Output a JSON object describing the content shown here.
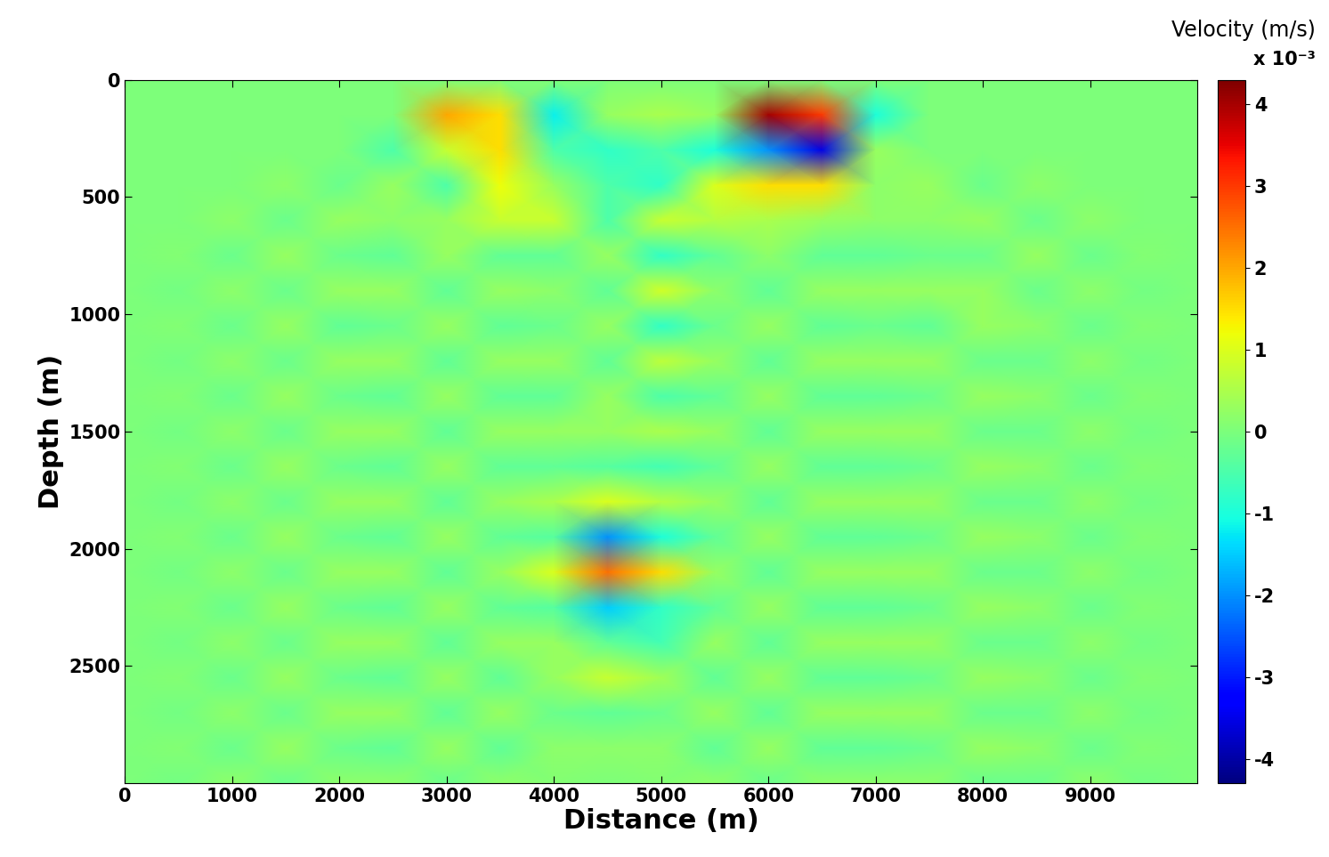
{
  "chart_data": {
    "type": "heatmap",
    "x_label": "Distance (m)",
    "y_label": "Depth (m)",
    "colorbar_label": "Velocity (m/s)",
    "colorbar_multiplier": "x 10⁻³",
    "color": "jet",
    "xlim": [
      0,
      10000
    ],
    "ylim": [
      3000,
      0
    ],
    "xticks": [
      0,
      1000,
      2000,
      3000,
      4000,
      5000,
      6000,
      7000,
      8000,
      9000
    ],
    "yticks": [
      0,
      500,
      1000,
      1500,
      2000,
      2500
    ],
    "colorbar_range": [
      -4.3,
      4.3
    ],
    "colorbar_ticks": [
      -4,
      -3,
      -2,
      -1,
      0,
      1,
      2,
      3,
      4
    ],
    "x": [
      0,
      500,
      1000,
      1500,
      2000,
      2500,
      3000,
      3500,
      4000,
      4500,
      5000,
      5500,
      6000,
      6500,
      7000,
      7500,
      8000,
      8500,
      9000,
      9500,
      10000
    ],
    "y": [
      0,
      150,
      300,
      450,
      600,
      750,
      900,
      1050,
      1200,
      1350,
      1500,
      1650,
      1800,
      1950,
      2100,
      2250,
      2400,
      2550,
      2700,
      2850,
      3000
    ],
    "cells": [
      [
        0,
        0,
        0,
        0,
        0,
        0,
        0,
        0,
        0,
        0,
        0,
        0,
        0,
        0,
        0,
        0,
        0,
        0,
        0,
        0,
        0
      ],
      [
        0,
        0,
        0,
        0,
        0,
        0,
        2.0,
        1.5,
        -1.2,
        0.3,
        0.5,
        0.3,
        4.0,
        3.0,
        -1.0,
        0,
        0,
        0,
        0,
        0,
        0
      ],
      [
        0,
        0,
        0,
        0,
        0,
        -0.5,
        0.8,
        1.5,
        -0.5,
        -0.8,
        -0.5,
        -1.0,
        -2.0,
        -3.5,
        0.3,
        0,
        0,
        0,
        0,
        0,
        0
      ],
      [
        0,
        0,
        0,
        0.2,
        -0.2,
        0.3,
        -0.5,
        1.2,
        0.3,
        -0.5,
        -0.8,
        1.0,
        1.5,
        1.5,
        0.2,
        0.3,
        -0.2,
        0.2,
        0,
        0,
        0
      ],
      [
        0,
        0,
        0.2,
        -0.2,
        0.3,
        0.2,
        0.3,
        0.8,
        0.8,
        -0.5,
        0.8,
        0.6,
        0.5,
        0.3,
        0.2,
        0.2,
        0.3,
        -0.2,
        0.2,
        0,
        0
      ],
      [
        0,
        0.1,
        -0.2,
        0.3,
        -0.2,
        -0.3,
        0.3,
        -0.3,
        -0.3,
        0.3,
        -0.8,
        -0.3,
        0.2,
        -0.3,
        -0.3,
        -0.2,
        -0.2,
        0.3,
        -0.2,
        0.1,
        0
      ],
      [
        0,
        -0.1,
        0.2,
        -0.2,
        0.3,
        0.3,
        -0.3,
        0.3,
        0.2,
        -0.3,
        0.9,
        0.2,
        -0.3,
        0.3,
        0.3,
        0.3,
        0.3,
        -0.2,
        0.2,
        -0.1,
        0
      ],
      [
        0,
        0.1,
        -0.2,
        0.3,
        -0.3,
        -0.2,
        0.3,
        -0.3,
        -0.2,
        0.3,
        -0.8,
        -0.2,
        0.3,
        -0.3,
        -0.2,
        -0.3,
        0.3,
        0.2,
        -0.2,
        0.1,
        0
      ],
      [
        0,
        -0.1,
        0.2,
        -0.2,
        0.3,
        0.3,
        -0.3,
        0.3,
        0.3,
        -0.3,
        0.7,
        0.3,
        -0.3,
        0.3,
        0.3,
        0.3,
        -0.2,
        -0.2,
        0.2,
        -0.1,
        0
      ],
      [
        0,
        0.1,
        -0.2,
        0.3,
        -0.2,
        -0.3,
        0.3,
        -0.3,
        -0.3,
        0.3,
        -0.5,
        -0.3,
        0.3,
        -0.3,
        -0.3,
        -0.2,
        0.3,
        0.2,
        -0.2,
        0.1,
        0
      ],
      [
        0,
        -0.1,
        0.2,
        -0.2,
        0.3,
        0.3,
        -0.3,
        0.3,
        0.3,
        0.3,
        0.5,
        0.3,
        -0.3,
        0.3,
        0.3,
        0.3,
        -0.2,
        -0.2,
        0.2,
        -0.1,
        0
      ],
      [
        0,
        0.1,
        -0.2,
        0.3,
        -0.2,
        -0.3,
        0.3,
        -0.3,
        -0.3,
        -0.4,
        -0.6,
        -0.3,
        0.3,
        -0.3,
        -0.3,
        -0.2,
        0.3,
        0.2,
        -0.2,
        0.1,
        0
      ],
      [
        0,
        -0.1,
        0.2,
        -0.2,
        0.3,
        0.3,
        -0.3,
        0.3,
        0.5,
        1.0,
        0.6,
        0.3,
        -0.3,
        0.3,
        0.3,
        0.3,
        -0.2,
        -0.2,
        0.2,
        -0.1,
        0
      ],
      [
        0,
        0.1,
        -0.2,
        0.3,
        -0.2,
        -0.3,
        0.3,
        -0.3,
        -0.4,
        -2.0,
        -1.0,
        -0.3,
        0.3,
        -0.3,
        -0.3,
        -0.2,
        0.3,
        0.2,
        -0.2,
        0.1,
        0
      ],
      [
        0,
        -0.1,
        0.2,
        -0.2,
        0.3,
        0.3,
        -0.3,
        0.3,
        1.0,
        2.5,
        1.5,
        0.3,
        -0.3,
        0.3,
        0.3,
        0.3,
        -0.2,
        -0.2,
        0.2,
        -0.1,
        0
      ],
      [
        0,
        0.1,
        -0.2,
        0.3,
        -0.2,
        -0.3,
        0.3,
        -0.3,
        -0.4,
        -1.5,
        -0.8,
        -0.3,
        0.3,
        -0.3,
        -0.3,
        -0.2,
        0.3,
        0.2,
        -0.2,
        0.1,
        0
      ],
      [
        0,
        -0.1,
        0.2,
        -0.2,
        0.3,
        0.3,
        -0.3,
        0.3,
        0.3,
        -0.3,
        -0.6,
        0.3,
        -0.3,
        0.3,
        0.3,
        0.3,
        -0.2,
        -0.2,
        0.2,
        -0.1,
        0
      ],
      [
        0,
        0.1,
        -0.2,
        0.3,
        -0.2,
        -0.3,
        0.3,
        -0.3,
        0.3,
        0.8,
        0.4,
        -0.3,
        0.3,
        -0.3,
        -0.3,
        -0.2,
        0.3,
        0.2,
        -0.2,
        0.1,
        0
      ],
      [
        0,
        -0.1,
        0.2,
        -0.2,
        0.3,
        0.3,
        -0.3,
        0.3,
        -0.2,
        -0.3,
        -0.2,
        0.3,
        -0.3,
        0.3,
        0.3,
        0.3,
        -0.2,
        -0.2,
        0.2,
        -0.1,
        0
      ],
      [
        0,
        0.1,
        -0.2,
        0.3,
        -0.2,
        -0.3,
        0.3,
        -0.3,
        0.2,
        0.2,
        0.2,
        -0.3,
        0.3,
        -0.3,
        -0.3,
        -0.2,
        0.3,
        0.2,
        -0.2,
        0.1,
        0
      ],
      [
        0,
        -0.1,
        0.2,
        -0.2,
        0.2,
        0.2,
        -0.2,
        0.2,
        0.1,
        0,
        0.1,
        0.2,
        -0.2,
        0.2,
        0.2,
        0.2,
        -0.2,
        -0.2,
        0.2,
        -0.1,
        0
      ]
    ]
  }
}
